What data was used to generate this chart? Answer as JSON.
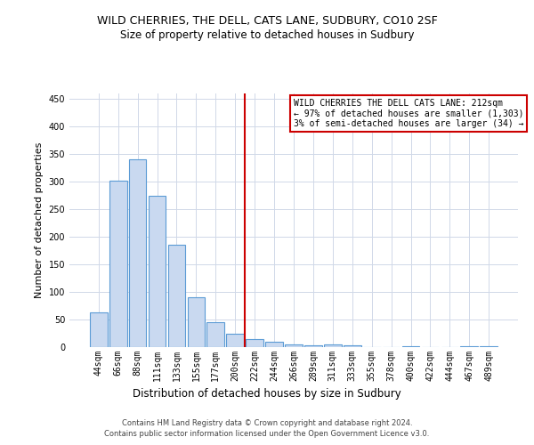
{
  "title": "WILD CHERRIES, THE DELL, CATS LANE, SUDBURY, CO10 2SF",
  "subtitle": "Size of property relative to detached houses in Sudbury",
  "xlabel": "Distribution of detached houses by size in Sudbury",
  "ylabel": "Number of detached properties",
  "categories": [
    "44sqm",
    "66sqm",
    "88sqm",
    "111sqm",
    "133sqm",
    "155sqm",
    "177sqm",
    "200sqm",
    "222sqm",
    "244sqm",
    "266sqm",
    "289sqm",
    "311sqm",
    "333sqm",
    "355sqm",
    "378sqm",
    "400sqm",
    "422sqm",
    "444sqm",
    "467sqm",
    "489sqm"
  ],
  "values": [
    63,
    302,
    340,
    275,
    185,
    90,
    46,
    25,
    15,
    10,
    5,
    3,
    5,
    3,
    0,
    0,
    2,
    0,
    0,
    2,
    1
  ],
  "bar_color": "#c9d9f0",
  "bar_edge_color": "#5b9bd5",
  "vline_x_index": 8,
  "vline_color": "#cc0000",
  "ylim": [
    0,
    460
  ],
  "yticks": [
    0,
    50,
    100,
    150,
    200,
    250,
    300,
    350,
    400,
    450
  ],
  "annotation_text": "WILD CHERRIES THE DELL CATS LANE: 212sqm\n← 97% of detached houses are smaller (1,303)\n3% of semi-detached houses are larger (34) →",
  "annotation_box_color": "#ffffff",
  "annotation_box_edge_color": "#cc0000",
  "footer_line1": "Contains HM Land Registry data © Crown copyright and database right 2024.",
  "footer_line2": "Contains public sector information licensed under the Open Government Licence v3.0.",
  "background_color": "#ffffff",
  "grid_color": "#d0d8e8",
  "title_fontsize": 9,
  "subtitle_fontsize": 8.5,
  "ylabel_fontsize": 8,
  "xlabel_fontsize": 8.5,
  "tick_fontsize": 7,
  "annot_fontsize": 7,
  "footer_fontsize": 6
}
